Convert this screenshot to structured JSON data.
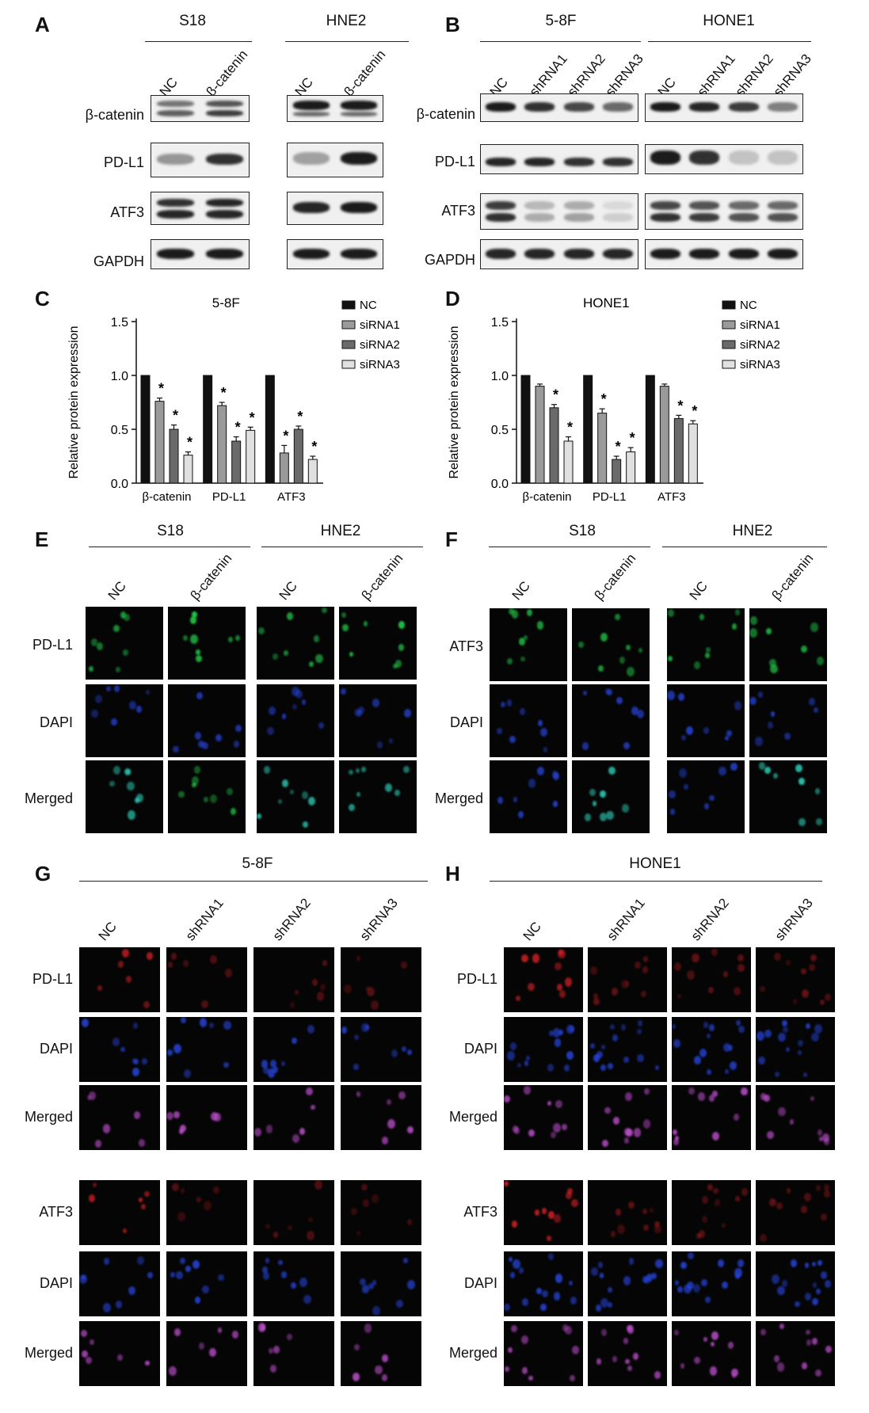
{
  "panels": {
    "A": {
      "letter": "A",
      "groups": [
        "S18",
        "HNE2"
      ],
      "lanes": [
        "NC",
        "β-catenin"
      ],
      "rows": [
        "β-catenin",
        "PD-L1",
        "ATF3",
        "GAPDH"
      ]
    },
    "B": {
      "letter": "B",
      "groups": [
        "5-8F",
        "HONE1"
      ],
      "lanes": [
        "NC",
        "shRNA1",
        "shRNA2",
        "shRNA3"
      ],
      "rows": [
        "β-catenin",
        "PD-L1",
        "ATF3",
        "GAPDH"
      ]
    },
    "E": {
      "letter": "E",
      "groups": [
        "S18",
        "HNE2"
      ],
      "lanes": [
        "NC",
        "β-catenin"
      ],
      "rows": [
        "PD-L1",
        "DAPI",
        "Merged"
      ]
    },
    "F": {
      "letter": "F",
      "groups": [
        "S18",
        "HNE2"
      ],
      "lanes": [
        "NC",
        "β-catenin"
      ],
      "rows": [
        "ATF3",
        "DAPI",
        "Merged"
      ]
    },
    "G": {
      "letter": "G",
      "groups": [
        "5-8F"
      ],
      "lanes": [
        "NC",
        "shRNA1",
        "shRNA2",
        "shRNA3"
      ],
      "rows": [
        "PD-L1",
        "DAPI",
        "Merged",
        "ATF3",
        "DAPI",
        "Merged"
      ]
    },
    "H": {
      "letter": "H",
      "groups": [
        "HONE1"
      ],
      "lanes": [
        "NC",
        "shRNA1",
        "shRNA2",
        "shRNA3"
      ],
      "rows": [
        "PD-L1",
        "DAPI",
        "Merged",
        "ATF3",
        "DAPI",
        "Merged"
      ]
    }
  },
  "colors": {
    "green": "#22c84a",
    "blue": "#2846e0",
    "cyan": "#2fd8c0",
    "red": "#e8242a",
    "magenta": "#c050d0"
  },
  "chart_data": [
    {
      "type": "bar",
      "letter": "C",
      "title": "5-8F",
      "ylabel": "Relative protein expression",
      "ylim": [
        0,
        1.5
      ],
      "yticks": [
        "0.0",
        "0.5",
        "1.0",
        "1.5"
      ],
      "categories": [
        "β-catenin",
        "PD-L1",
        "ATF3"
      ],
      "series": [
        {
          "name": "NC",
          "values": [
            1.0,
            1.0,
            1.0
          ],
          "err": [
            0,
            0,
            0
          ],
          "color": "#111111"
        },
        {
          "name": "siRNA1",
          "values": [
            0.76,
            0.72,
            0.28
          ],
          "err": [
            0.03,
            0.03,
            0.07
          ],
          "color": "#9a9a9a"
        },
        {
          "name": "siRNA2",
          "values": [
            0.5,
            0.39,
            0.5
          ],
          "err": [
            0.04,
            0.04,
            0.03
          ],
          "color": "#6a6a6a"
        },
        {
          "name": "siRNA3",
          "values": [
            0.26,
            0.49,
            0.22
          ],
          "err": [
            0.03,
            0.03,
            0.03
          ],
          "color": "#e0e0e0"
        }
      ],
      "sig": [
        [
          false,
          true,
          true,
          true
        ],
        [
          false,
          true,
          true,
          true
        ],
        [
          false,
          true,
          true,
          true
        ]
      ],
      "sig_mark": "*"
    },
    {
      "type": "bar",
      "letter": "D",
      "title": "HONE1",
      "ylabel": "Relative protein expression",
      "ylim": [
        0,
        1.5
      ],
      "yticks": [
        "0.0",
        "0.5",
        "1.0",
        "1.5"
      ],
      "categories": [
        "β-catenin",
        "PD-L1",
        "ATF3"
      ],
      "series": [
        {
          "name": "NC",
          "values": [
            1.0,
            1.0,
            1.0
          ],
          "err": [
            0,
            0,
            0
          ],
          "color": "#111111"
        },
        {
          "name": "siRNA1",
          "values": [
            0.9,
            0.65,
            0.9
          ],
          "err": [
            0.02,
            0.04,
            0.02
          ],
          "color": "#9a9a9a"
        },
        {
          "name": "siRNA2",
          "values": [
            0.7,
            0.22,
            0.6
          ],
          "err": [
            0.03,
            0.03,
            0.03
          ],
          "color": "#6a6a6a"
        },
        {
          "name": "siRNA3",
          "values": [
            0.39,
            0.29,
            0.55
          ],
          "err": [
            0.04,
            0.04,
            0.03
          ],
          "color": "#e0e0e0"
        }
      ],
      "sig": [
        [
          false,
          false,
          true,
          true
        ],
        [
          false,
          true,
          true,
          true
        ],
        [
          false,
          false,
          true,
          true
        ]
      ],
      "sig_mark": "*"
    }
  ]
}
